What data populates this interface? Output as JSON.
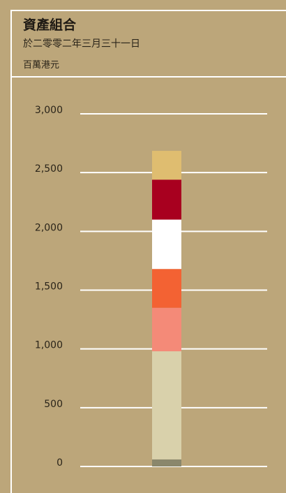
{
  "header": {
    "title": "資產組合",
    "subtitle": "於二零零二年三月三十一日",
    "unit": "百萬港元"
  },
  "chart_data": {
    "type": "bar",
    "stacked": true,
    "categories": [
      ""
    ],
    "ylim": [
      0,
      3000
    ],
    "yticks": [
      0,
      500,
      1000,
      1500,
      2000,
      2500,
      3000
    ],
    "ytick_labels": [
      "0",
      "500",
      "1,000",
      "1,500",
      "2,000",
      "2,500",
      "3,000"
    ],
    "grid": true,
    "colors": [
      "#8a876c",
      "#d9d1ab",
      "#f48a78",
      "#f36233",
      "#ffffff",
      "#a8001f",
      "#dfbd70"
    ],
    "series": [
      {
        "values": [
          60
        ]
      },
      {
        "values": [
          920
        ]
      },
      {
        "values": [
          370
        ]
      },
      {
        "values": [
          330
        ]
      },
      {
        "values": [
          420
        ]
      },
      {
        "values": [
          340
        ]
      },
      {
        "values": [
          245
        ]
      }
    ]
  }
}
